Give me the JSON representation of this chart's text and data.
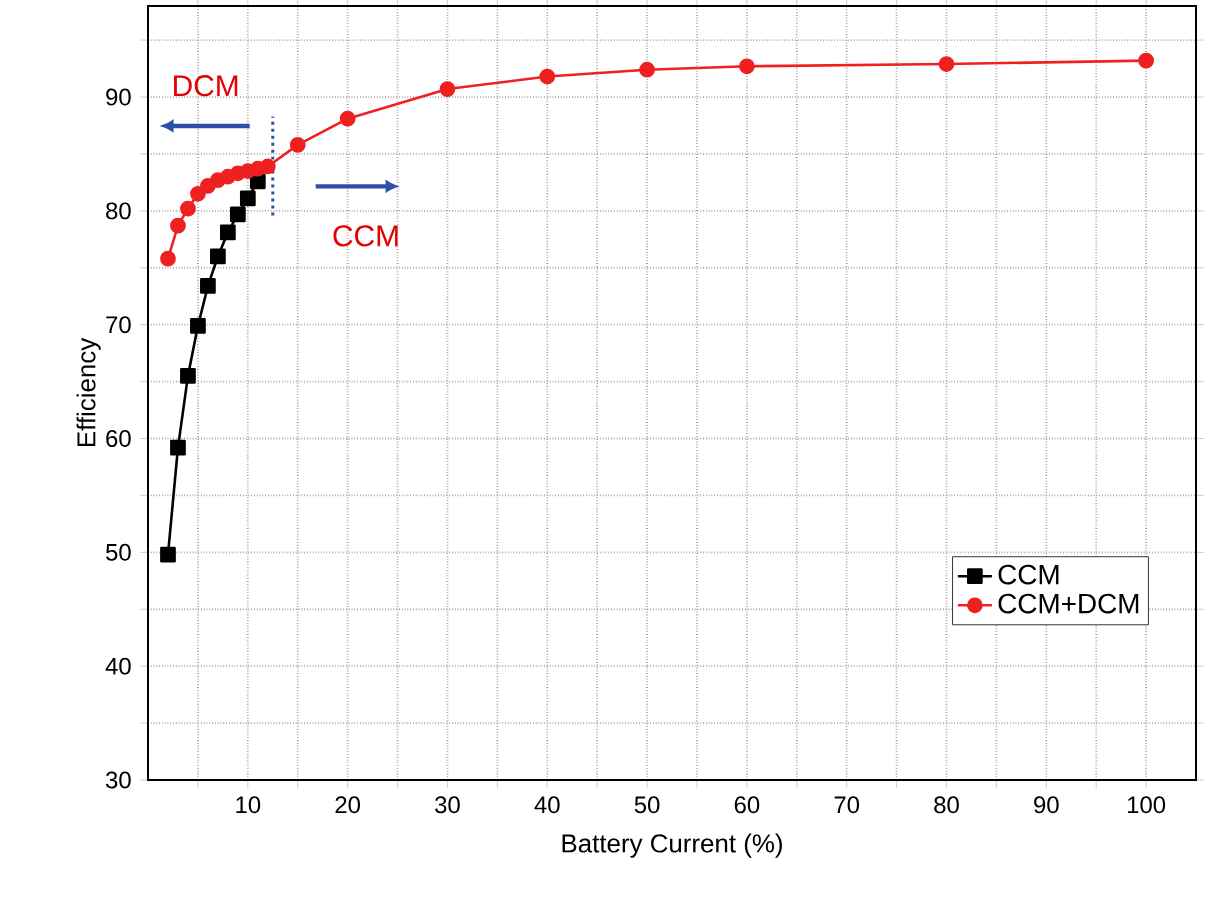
{
  "chart_data": {
    "type": "line",
    "xlabel": "Battery Current (%)",
    "ylabel": "Efficiency",
    "xlim": [
      0,
      105
    ],
    "ylim": [
      30,
      98
    ],
    "xticks": [
      {
        "value": 5,
        "label": null
      },
      10,
      {
        "value": 15,
        "label": null
      },
      20,
      {
        "value": 25,
        "label": null
      },
      30,
      {
        "value": 35,
        "label": null
      },
      40,
      {
        "value": 45,
        "label": null
      },
      50,
      {
        "value": 55,
        "label": null
      },
      60,
      {
        "value": 65,
        "label": null
      },
      70,
      {
        "value": 75,
        "label": null
      },
      80,
      {
        "value": 85,
        "label": null
      },
      90,
      {
        "value": 95,
        "label": null
      },
      100
    ],
    "yticks": [
      30,
      {
        "value": 35,
        "label": null
      },
      40,
      {
        "value": 45,
        "label": null
      },
      50,
      {
        "value": 55,
        "label": null
      },
      60,
      {
        "value": 65,
        "label": null
      },
      70,
      {
        "value": 75,
        "label": null
      },
      80,
      {
        "value": 85,
        "label": null
      },
      90,
      {
        "value": 95,
        "label": null
      }
    ],
    "grid": true,
    "legend": "bottom right",
    "series": [
      {
        "name": "CCM",
        "color": "#000000",
        "marker": "square",
        "x": [
          2,
          3,
          4,
          5,
          6,
          7,
          8,
          9,
          10,
          11
        ],
        "values": [
          49.8,
          59.2,
          65.5,
          69.9,
          73.4,
          76,
          78.1,
          79.7,
          81.1,
          82.6
        ]
      },
      {
        "name": "CCM+DCM",
        "color": "#ee2020",
        "marker": "circle",
        "x": [
          2,
          3,
          4,
          5,
          6,
          7,
          8,
          9,
          10,
          11,
          12,
          15,
          20,
          30,
          40,
          50,
          60,
          80,
          100
        ],
        "values": [
          75.8,
          78.7,
          80.2,
          81.5,
          82.2,
          82.7,
          83,
          83.3,
          83.5,
          83.7,
          83.9,
          85.8,
          88.1,
          90.7,
          91.8,
          92.4,
          92.7,
          92.9,
          93.2
        ]
      }
    ],
    "ref_lines": [
      {
        "axis": "x",
        "value": 12.5,
        "color": "#2e4fa8",
        "line_style": "dotted"
      }
    ],
    "annotations": [
      "DCM",
      "CCM"
    ]
  }
}
